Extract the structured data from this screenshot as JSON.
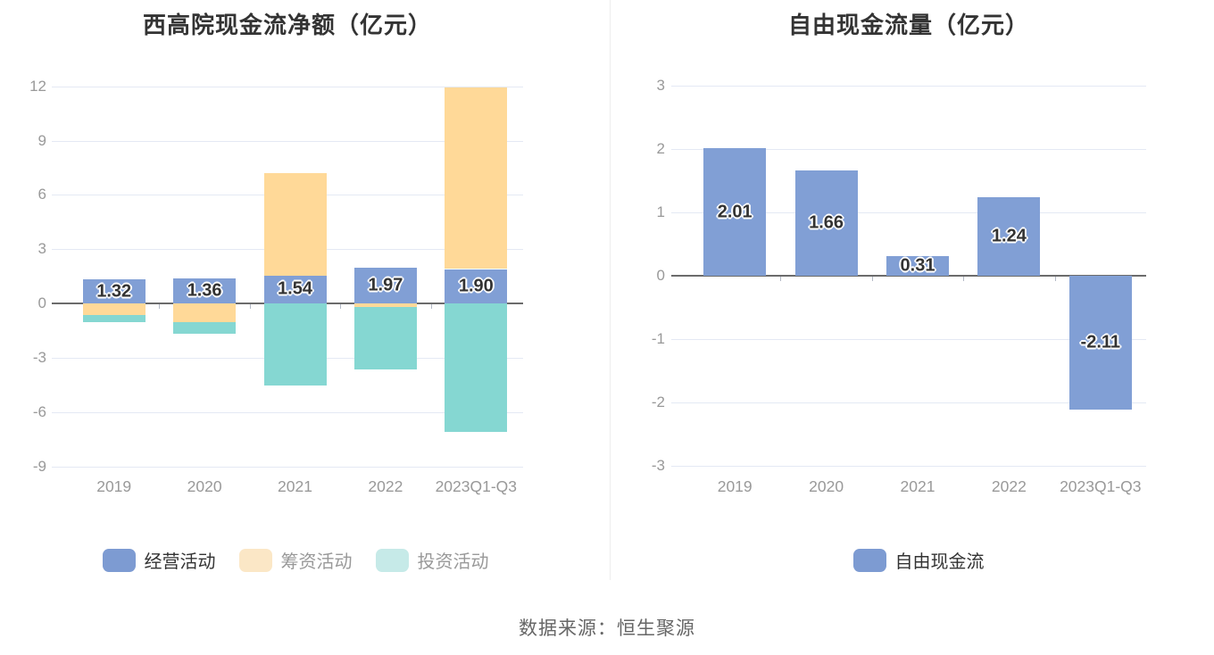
{
  "page": {
    "source_note": "数据来源：恒生聚源",
    "background": "#ffffff",
    "divider_color": "#ededed",
    "title_color": "#333333",
    "axis_label_color": "#999999",
    "value_label_color": "#333333",
    "grid_line_color": "#e4e9f4",
    "zero_line_color": "#6b6b6b",
    "tick_color": "#b3b9c6"
  },
  "chart_data": [
    {
      "type": "bar",
      "title": "西高院现金流净额（亿元）",
      "categories": [
        "2019",
        "2020",
        "2021",
        "2022",
        "2023Q1-Q3"
      ],
      "stacked": true,
      "grid": true,
      "legend_position": "bottom",
      "yticks": [
        12,
        9,
        6,
        3,
        0,
        -3,
        -6,
        -9
      ],
      "ylim": [
        -9,
        12.3
      ],
      "series": [
        {
          "name": "经营活动",
          "color": "#819fd5",
          "legend_chip_color": "#7d9bd2",
          "legend_text_color": "#333333",
          "values": [
            1.32,
            1.36,
            1.54,
            1.97,
            1.9
          ],
          "labels": [
            "1.32",
            "1.36",
            "1.54",
            "1.97",
            "1.90"
          ]
        },
        {
          "name": "筹资活动",
          "color": "#ffd998",
          "legend_chip_color": "#fbe7c6",
          "legend_text_color": "#999999",
          "values": [
            -0.64,
            -1.05,
            5.65,
            -0.21,
            10.03
          ]
        },
        {
          "name": "投资活动",
          "color": "#85d7d2",
          "legend_chip_color": "#c6eae8",
          "legend_text_color": "#999999",
          "values": [
            -0.37,
            -0.63,
            -4.52,
            -3.42,
            -7.08
          ]
        }
      ]
    },
    {
      "type": "bar",
      "title": "自由现金流量（亿元）",
      "categories": [
        "2019",
        "2020",
        "2021",
        "2022",
        "2023Q1-Q3"
      ],
      "stacked": false,
      "grid": true,
      "legend_position": "bottom",
      "yticks": [
        3,
        2,
        1,
        0,
        -1,
        -2,
        -3
      ],
      "ylim": [
        -3,
        3.3
      ],
      "series": [
        {
          "name": "自由现金流",
          "color": "#819fd5",
          "legend_chip_color": "#7d9bd2",
          "legend_text_color": "#333333",
          "values": [
            2.01,
            1.66,
            0.31,
            1.24,
            -2.11
          ],
          "labels": [
            "2.01",
            "1.66",
            "0.31",
            "1.24",
            "-2.11"
          ]
        }
      ]
    }
  ]
}
